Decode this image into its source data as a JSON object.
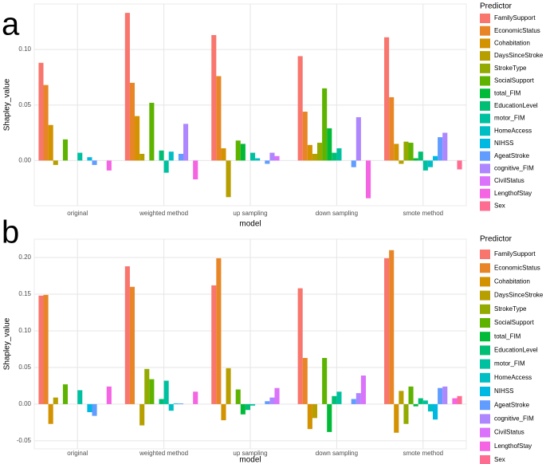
{
  "chart_data": [
    {
      "type": "bar",
      "panel_label": "a",
      "x_label": "model",
      "y_label": "Shapley_value",
      "legend_title": "Predictor",
      "legend": "right",
      "grid": true,
      "categories": [
        "original",
        "weighted  method",
        "up  sampling",
        "down  sampling",
        "smote  method"
      ],
      "ylim": [
        -0.0407,
        0.141
      ],
      "yticks": [
        {
          "value": 0,
          "label": "0.00"
        },
        {
          "value": 0.05,
          "label": "0.05"
        },
        {
          "value": 0.1,
          "label": "0.10"
        }
      ],
      "series": [
        {
          "name": "FamilySupport",
          "color": "#F8766D",
          "values": [
            0.088,
            0.133,
            0.113,
            0.094,
            0.111
          ]
        },
        {
          "name": "EconomicStatus",
          "color": "#E88526",
          "values": [
            0.068,
            0.07,
            0.076,
            0.044,
            0.057
          ]
        },
        {
          "name": "Cohabitation",
          "color": "#D39200",
          "values": [
            0.032,
            0.04,
            0.011,
            0.014,
            0.015
          ]
        },
        {
          "name": "DaysSinceStroke",
          "color": "#B79F00",
          "values": [
            -0.004,
            0.006,
            -0.033,
            0.006,
            -0.003
          ]
        },
        {
          "name": "StrokeType",
          "color": "#93AA00",
          "values": [
            0,
            0,
            0,
            0.016,
            0.017
          ]
        },
        {
          "name": "SocialSupport",
          "color": "#5EB300",
          "values": [
            0.019,
            0.052,
            0.018,
            0.065,
            0.016
          ]
        },
        {
          "name": "total_FIM",
          "color": "#00BA38",
          "values": [
            0,
            0,
            0.015,
            0.029,
            0.002
          ]
        },
        {
          "name": "EducationLevel",
          "color": "#00BF74",
          "values": [
            0,
            0.009,
            0,
            0.007,
            0.008
          ]
        },
        {
          "name": "motor_FIM",
          "color": "#00C19F",
          "values": [
            0.007,
            -0.011,
            0.007,
            0.011,
            -0.009
          ]
        },
        {
          "name": "HomeAccess",
          "color": "#00BFC4",
          "values": [
            0,
            0.008,
            0.002,
            0,
            -0.006
          ]
        },
        {
          "name": "NIHSS",
          "color": "#00B9E3",
          "values": [
            0.003,
            0,
            0,
            0,
            0.004
          ]
        },
        {
          "name": "AgeatStroke",
          "color": "#619CFF",
          "values": [
            -0.004,
            0.006,
            -0.003,
            -0.006,
            0.021
          ]
        },
        {
          "name": "cognitive_FIM",
          "color": "#AE87FF",
          "values": [
            0,
            0.033,
            0.007,
            0.039,
            0.025
          ]
        },
        {
          "name": "CivilStatus",
          "color": "#DB72FB",
          "values": [
            0,
            0,
            0.004,
            0,
            0
          ]
        },
        {
          "name": "LengthofStay",
          "color": "#F564E3",
          "values": [
            -0.009,
            -0.017,
            0,
            -0.034,
            0
          ]
        },
        {
          "name": "Sex",
          "color": "#FF6C91",
          "values": [
            0,
            0,
            0,
            0,
            -0.008
          ]
        }
      ]
    },
    {
      "type": "bar",
      "panel_label": "b",
      "x_label": "model",
      "y_label": "Shapley_value",
      "legend_title": "Predictor",
      "legend": "right",
      "grid": true,
      "categories": [
        "original",
        "weighted  method",
        "up  sampling",
        "down  sampling",
        "smote  method"
      ],
      "ylim": [
        -0.061,
        0.225
      ],
      "yticks": [
        {
          "value": -0.05,
          "label": "-0.05"
        },
        {
          "value": 0,
          "label": "0.00"
        },
        {
          "value": 0.05,
          "label": "0.05"
        },
        {
          "value": 0.1,
          "label": "0.10"
        },
        {
          "value": 0.15,
          "label": "0.15"
        },
        {
          "value": 0.2,
          "label": "0.20"
        }
      ],
      "series": [
        {
          "name": "FamilySupport",
          "color": "#F8766D",
          "values": [
            0.148,
            0.188,
            0.162,
            0.158,
            0.199
          ]
        },
        {
          "name": "EconomicStatus",
          "color": "#E88526",
          "values": [
            0.149,
            0.16,
            0.199,
            0.063,
            0.21
          ]
        },
        {
          "name": "Cohabitation",
          "color": "#D39200",
          "values": [
            -0.027,
            0,
            -0.022,
            -0.034,
            -0.039
          ]
        },
        {
          "name": "DaysSinceStroke",
          "color": "#B79F00",
          "values": [
            0.009,
            -0.029,
            0.049,
            -0.019,
            0.018
          ]
        },
        {
          "name": "StrokeType",
          "color": "#93AA00",
          "values": [
            0,
            0.048,
            0,
            0,
            -0.027
          ]
        },
        {
          "name": "SocialSupport",
          "color": "#5EB300",
          "values": [
            0.027,
            0.034,
            0.02,
            0.063,
            0.024
          ]
        },
        {
          "name": "total_FIM",
          "color": "#00BA38",
          "values": [
            0,
            0,
            -0.014,
            -0.038,
            -0.003
          ]
        },
        {
          "name": "EducationLevel",
          "color": "#00BF74",
          "values": [
            0,
            0.007,
            -0.008,
            0.011,
            0.008
          ]
        },
        {
          "name": "motor_FIM",
          "color": "#00C19F",
          "values": [
            0.019,
            0.032,
            -0.002,
            0.017,
            0.005
          ]
        },
        {
          "name": "HomeAccess",
          "color": "#00BFC4",
          "values": [
            0,
            -0.009,
            0,
            0,
            -0.01
          ]
        },
        {
          "name": "NIHSS",
          "color": "#00B9E3",
          "values": [
            -0.011,
            0.001,
            0,
            0,
            -0.021
          ]
        },
        {
          "name": "AgeatStroke",
          "color": "#619CFF",
          "values": [
            -0.016,
            0.001,
            0.004,
            0.007,
            0.022
          ]
        },
        {
          "name": "cognitive_FIM",
          "color": "#AE87FF",
          "values": [
            0,
            0,
            0.009,
            0.015,
            0.024
          ]
        },
        {
          "name": "CivilStatus",
          "color": "#DB72FB",
          "values": [
            0,
            0,
            0.022,
            0.039,
            0
          ]
        },
        {
          "name": "LengthofStay",
          "color": "#F564E3",
          "values": [
            0.024,
            0.017,
            0,
            0,
            0.008
          ]
        },
        {
          "name": "Sex",
          "color": "#FF6C91",
          "values": [
            0,
            0,
            0,
            0,
            0.011
          ]
        }
      ]
    }
  ]
}
